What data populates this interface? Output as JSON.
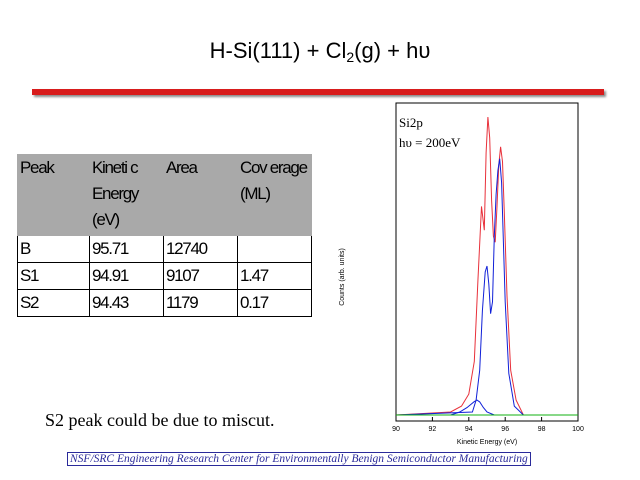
{
  "slide": {
    "title_pre": "H-Si(111) + Cl",
    "title_sub": "2",
    "title_post": "(g) + hυ",
    "note": "S2 peak could be due to miscut.",
    "footer": "NSF/SRC Engineering Research Center for Environmentally Benign Semiconductor Manufacturing"
  },
  "table": {
    "headers": [
      "Peak",
      "Kineti c Energy (eV)",
      "Area",
      "Cov erage (ML)"
    ],
    "rows": [
      [
        "B",
        "95.71",
        "12740",
        ""
      ],
      [
        "S1",
        "94.91",
        "9107",
        "1.47"
      ],
      [
        "S2",
        "94.43",
        "1179",
        "0.17"
      ]
    ]
  },
  "chart_data": {
    "type": "line",
    "annotation_line1": "Si2p",
    "annotation_line2": "hυ = 200eV",
    "xlabel": "Kinetic Energy (eV)",
    "ylabel": "Counts (arb. units)",
    "xlim": [
      90,
      100
    ],
    "ylim": [
      0,
      1
    ],
    "xticks": [
      "90",
      "92",
      "94",
      "96",
      "98",
      "100"
    ],
    "colors": {
      "red": "#e8303a",
      "blue": "#1020d8",
      "green": "#10b010"
    },
    "series": [
      {
        "color": "red",
        "x": [
          90,
          93,
          93.6,
          94.0,
          94.3,
          94.5,
          94.7,
          94.85,
          94.95,
          95.05,
          95.15,
          95.25,
          95.35,
          95.45,
          95.55,
          95.65,
          95.75,
          95.85,
          95.95,
          96.1,
          96.3,
          96.6,
          97,
          100
        ],
        "y": [
          0.0,
          0.01,
          0.03,
          0.07,
          0.18,
          0.45,
          0.7,
          0.62,
          0.88,
          1.0,
          0.93,
          0.72,
          0.6,
          0.58,
          0.7,
          0.84,
          0.9,
          0.85,
          0.68,
          0.4,
          0.15,
          0.05,
          0.0,
          0.0
        ]
      },
      {
        "color": "blue",
        "x": [
          90,
          94.2,
          94.4,
          94.6,
          94.75,
          94.9,
          95.0,
          95.1,
          95.2,
          95.3,
          95.4,
          95.5,
          95.6,
          95.7,
          95.8,
          95.9,
          96.0,
          96.2,
          96.5,
          97,
          100
        ],
        "y": [
          0.0,
          0.01,
          0.05,
          0.15,
          0.35,
          0.48,
          0.5,
          0.44,
          0.34,
          0.38,
          0.6,
          0.74,
          0.82,
          0.86,
          0.78,
          0.58,
          0.38,
          0.14,
          0.03,
          0.0,
          0.0
        ]
      },
      {
        "color": "blue",
        "x": [
          93,
          93.5,
          93.9,
          94.1,
          94.3,
          94.45,
          94.6,
          94.8,
          95.0,
          95.4
        ],
        "y": [
          0.0,
          0.01,
          0.025,
          0.035,
          0.045,
          0.05,
          0.044,
          0.025,
          0.01,
          0.0
        ]
      },
      {
        "color": "green",
        "x": [
          90,
          100
        ],
        "y": [
          0.0,
          0.0
        ]
      }
    ]
  }
}
